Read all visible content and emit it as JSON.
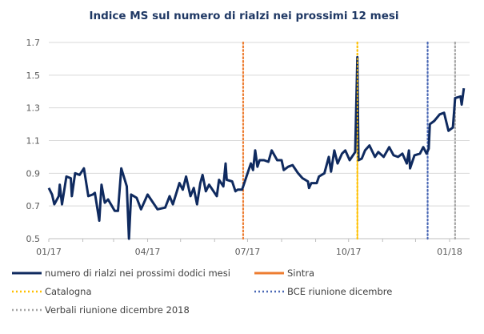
{
  "chart_data": {
    "type": "line",
    "title": "Indice MS sul numero di rialzi nei prossimi 12 mesi",
    "xlabel": "",
    "ylabel": "",
    "ylim": [
      0.5,
      1.7
    ],
    "yticks": [
      "0.5",
      "0.7",
      "0.9",
      "1.1",
      "1.3",
      "1.5",
      "1.7"
    ],
    "xlim": [
      "2017-01-01",
      "2018-01-18"
    ],
    "xticks": [
      {
        "date": "2017-01-01",
        "label": "01/17"
      },
      {
        "date": "2017-04-01",
        "label": "04/17"
      },
      {
        "date": "2017-07-01",
        "label": "07/17"
      },
      {
        "date": "2017-10-01",
        "label": "10/17"
      },
      {
        "date": "2018-01-01",
        "label": "01/18"
      }
    ],
    "grid": true,
    "legend_position": "bottom",
    "series": [
      {
        "name": "numero di rialzi nei prossimi dodici mesi",
        "color": "#0f2a5f",
        "points": [
          [
            "2017-01-01",
            0.81
          ],
          [
            "2017-01-04",
            0.77
          ],
          [
            "2017-01-06",
            0.71
          ],
          [
            "2017-01-10",
            0.76
          ],
          [
            "2017-01-11",
            0.83
          ],
          [
            "2017-01-13",
            0.71
          ],
          [
            "2017-01-17",
            0.88
          ],
          [
            "2017-01-21",
            0.87
          ],
          [
            "2017-01-22",
            0.76
          ],
          [
            "2017-01-25",
            0.9
          ],
          [
            "2017-01-29",
            0.89
          ],
          [
            "2017-02-02",
            0.93
          ],
          [
            "2017-02-06",
            0.76
          ],
          [
            "2017-02-10",
            0.77
          ],
          [
            "2017-02-12",
            0.78
          ],
          [
            "2017-02-16",
            0.61
          ],
          [
            "2017-02-18",
            0.83
          ],
          [
            "2017-02-21",
            0.72
          ],
          [
            "2017-02-24",
            0.74
          ],
          [
            "2017-03-02",
            0.67
          ],
          [
            "2017-03-05",
            0.67
          ],
          [
            "2017-03-08",
            0.93
          ],
          [
            "2017-03-13",
            0.82
          ],
          [
            "2017-03-15",
            0.5
          ],
          [
            "2017-03-17",
            0.77
          ],
          [
            "2017-03-22",
            0.75
          ],
          [
            "2017-03-26",
            0.68
          ],
          [
            "2017-04-01",
            0.77
          ],
          [
            "2017-04-10",
            0.68
          ],
          [
            "2017-04-17",
            0.69
          ],
          [
            "2017-04-21",
            0.76
          ],
          [
            "2017-04-24",
            0.71
          ],
          [
            "2017-04-30",
            0.84
          ],
          [
            "2017-05-03",
            0.8
          ],
          [
            "2017-05-06",
            0.88
          ],
          [
            "2017-05-10",
            0.76
          ],
          [
            "2017-05-13",
            0.81
          ],
          [
            "2017-05-16",
            0.71
          ],
          [
            "2017-05-19",
            0.84
          ],
          [
            "2017-05-21",
            0.89
          ],
          [
            "2017-05-24",
            0.79
          ],
          [
            "2017-05-27",
            0.83
          ],
          [
            "2017-06-03",
            0.76
          ],
          [
            "2017-06-05",
            0.86
          ],
          [
            "2017-06-09",
            0.82
          ],
          [
            "2017-06-11",
            0.96
          ],
          [
            "2017-06-12",
            0.86
          ],
          [
            "2017-06-17",
            0.85
          ],
          [
            "2017-06-20",
            0.79
          ],
          [
            "2017-06-22",
            0.8
          ],
          [
            "2017-06-26",
            0.8
          ],
          [
            "2017-07-02",
            0.92
          ],
          [
            "2017-07-04",
            0.96
          ],
          [
            "2017-07-06",
            0.92
          ],
          [
            "2017-07-08",
            1.04
          ],
          [
            "2017-07-10",
            0.94
          ],
          [
            "2017-07-12",
            0.98
          ],
          [
            "2017-07-16",
            0.98
          ],
          [
            "2017-07-20",
            0.97
          ],
          [
            "2017-07-23",
            1.04
          ],
          [
            "2017-07-28",
            0.98
          ],
          [
            "2017-08-01",
            0.98
          ],
          [
            "2017-08-03",
            0.92
          ],
          [
            "2017-08-07",
            0.94
          ],
          [
            "2017-08-11",
            0.95
          ],
          [
            "2017-08-16",
            0.9
          ],
          [
            "2017-08-20",
            0.87
          ],
          [
            "2017-08-25",
            0.85
          ],
          [
            "2017-08-26",
            0.81
          ],
          [
            "2017-08-28",
            0.84
          ],
          [
            "2017-09-02",
            0.84
          ],
          [
            "2017-09-04",
            0.88
          ],
          [
            "2017-09-09",
            0.9
          ],
          [
            "2017-09-13",
            1.0
          ],
          [
            "2017-09-15",
            0.91
          ],
          [
            "2017-09-18",
            1.04
          ],
          [
            "2017-09-21",
            0.96
          ],
          [
            "2017-09-25",
            1.02
          ],
          [
            "2017-09-28",
            1.04
          ],
          [
            "2017-10-02",
            0.98
          ],
          [
            "2017-10-07",
            1.03
          ],
          [
            "2017-10-09",
            1.61
          ],
          [
            "2017-10-10",
            0.98
          ],
          [
            "2017-10-13",
            0.99
          ],
          [
            "2017-10-16",
            1.04
          ],
          [
            "2017-10-20",
            1.07
          ],
          [
            "2017-10-25",
            1.0
          ],
          [
            "2017-10-28",
            1.03
          ],
          [
            "2017-11-02",
            1.0
          ],
          [
            "2017-11-07",
            1.06
          ],
          [
            "2017-11-11",
            1.01
          ],
          [
            "2017-11-15",
            1.0
          ],
          [
            "2017-11-19",
            1.02
          ],
          [
            "2017-11-23",
            0.96
          ],
          [
            "2017-11-25",
            1.04
          ],
          [
            "2017-11-26",
            0.93
          ],
          [
            "2017-11-30",
            1.01
          ],
          [
            "2017-12-05",
            1.02
          ],
          [
            "2017-12-08",
            1.06
          ],
          [
            "2017-12-11",
            1.02
          ],
          [
            "2017-12-13",
            1.05
          ],
          [
            "2017-12-14",
            1.2
          ],
          [
            "2017-12-18",
            1.22
          ],
          [
            "2017-12-23",
            1.26
          ],
          [
            "2017-12-27",
            1.27
          ],
          [
            "2017-12-31",
            1.16
          ],
          [
            "2018-01-04",
            1.18
          ],
          [
            "2018-01-06",
            1.36
          ],
          [
            "2018-01-11",
            1.37
          ],
          [
            "2018-01-12",
            1.32
          ],
          [
            "2018-01-14",
            1.42
          ]
        ]
      }
    ],
    "events": [
      {
        "name": "Sintra",
        "date": "2017-06-27",
        "color": "#ed7d31"
      },
      {
        "name": "Catalogna",
        "date": "2017-10-09",
        "color": "#ffc000"
      },
      {
        "name": "BCE riunione dicembre",
        "date": "2017-12-12",
        "color": "#4a68b5"
      },
      {
        "name": "Verbali riunione dicembre 2018",
        "date": "2018-01-06",
        "color": "#a5a5a5"
      }
    ]
  }
}
